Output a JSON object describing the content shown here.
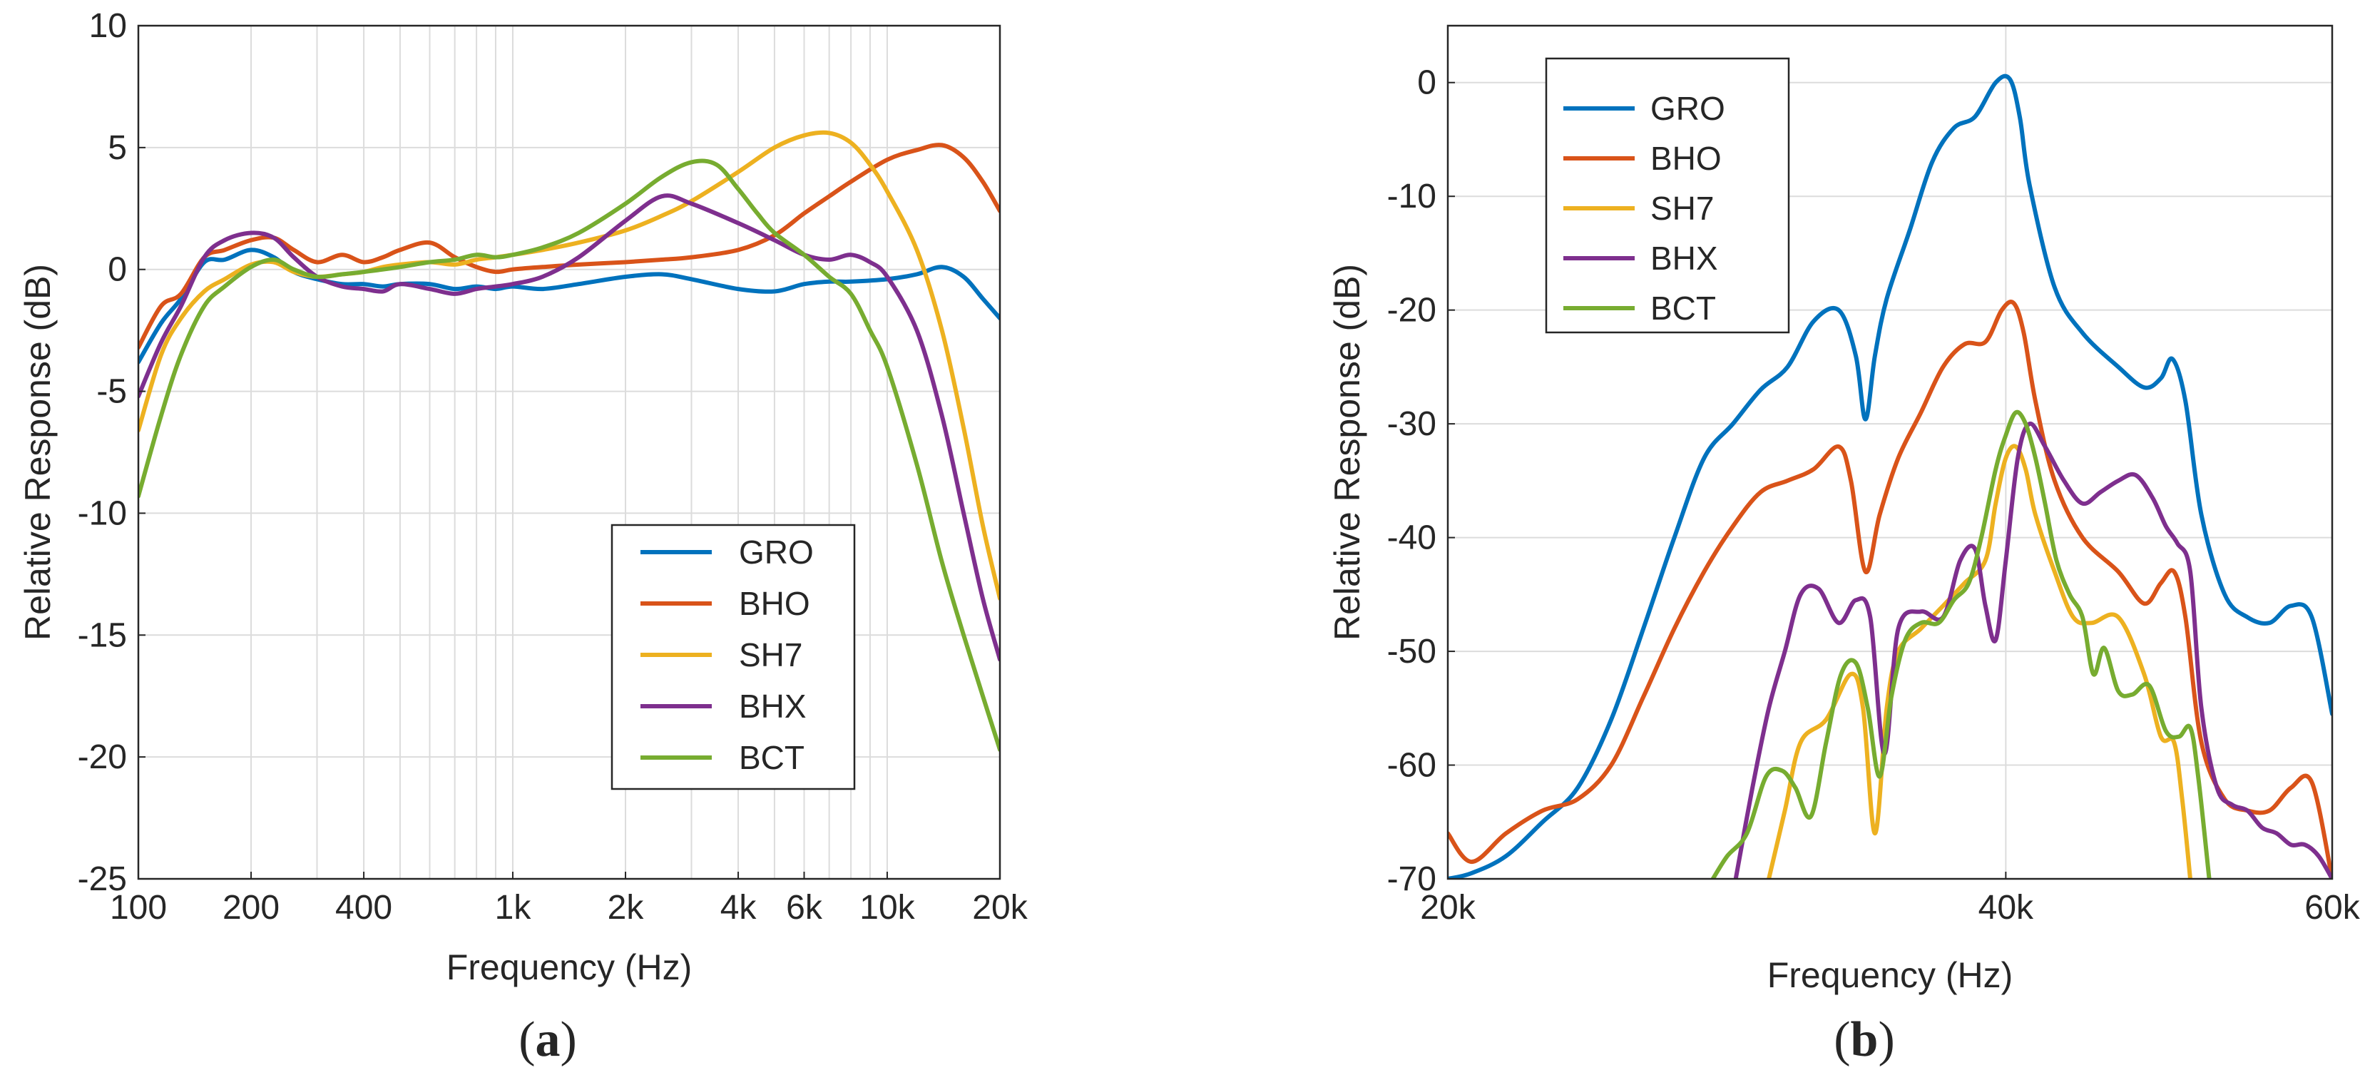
{
  "chart_data": [
    {
      "type": "line",
      "panel_label": "a",
      "xscale": "log",
      "xlim": [
        100,
        20000
      ],
      "ylim": [
        -25,
        10
      ],
      "xlabel": "Frequency (Hz)",
      "ylabel": "Relative Response (dB)",
      "grid": true,
      "legend_position": "lower-right",
      "xticks": [
        100,
        200,
        400,
        1000,
        2000,
        4000,
        6000,
        10000,
        20000
      ],
      "xtick_labels": [
        "100",
        "200",
        "400",
        "1k",
        "2k",
        "4k",
        "6k",
        "10k",
        "20k"
      ],
      "yticks": [
        10,
        5,
        0,
        -5,
        -10,
        -15,
        -20,
        -25
      ],
      "ytick_labels": [
        "10",
        "5",
        "0",
        "-5",
        "-10",
        "-15",
        "-20",
        "-25"
      ],
      "series": [
        {
          "name": "GRO",
          "color": "#0072BD",
          "x": [
            100,
            115,
            130,
            150,
            170,
            200,
            230,
            260,
            300,
            350,
            400,
            450,
            500,
            600,
            700,
            800,
            900,
            1000,
            1200,
            1500,
            2000,
            2500,
            3000,
            4000,
            5000,
            6000,
            7000,
            8000,
            10000,
            12000,
            14000,
            16000,
            18000,
            20000
          ],
          "y": [
            -3.8,
            -2.2,
            -1.2,
            0.3,
            0.4,
            0.8,
            0.5,
            -0.1,
            -0.4,
            -0.6,
            -0.6,
            -0.7,
            -0.6,
            -0.6,
            -0.8,
            -0.7,
            -0.8,
            -0.7,
            -0.8,
            -0.6,
            -0.3,
            -0.2,
            -0.4,
            -0.8,
            -0.9,
            -0.6,
            -0.5,
            -0.5,
            -0.4,
            -0.2,
            0.1,
            -0.3,
            -1.2,
            -2.0
          ]
        },
        {
          "name": "BHO",
          "color": "#D95319",
          "x": [
            100,
            115,
            130,
            150,
            170,
            200,
            230,
            260,
            300,
            350,
            400,
            450,
            500,
            600,
            700,
            800,
            900,
            1000,
            1200,
            1500,
            2000,
            2500,
            3000,
            4000,
            5000,
            6000,
            7000,
            8000,
            10000,
            12000,
            14000,
            16000,
            18000,
            20000
          ],
          "y": [
            -3.2,
            -1.5,
            -1.0,
            0.5,
            0.8,
            1.2,
            1.3,
            0.8,
            0.3,
            0.6,
            0.3,
            0.5,
            0.8,
            1.1,
            0.5,
            0.1,
            -0.1,
            0.0,
            0.1,
            0.2,
            0.3,
            0.4,
            0.5,
            0.8,
            1.4,
            2.3,
            3.0,
            3.6,
            4.5,
            4.9,
            5.1,
            4.6,
            3.6,
            2.4
          ]
        },
        {
          "name": "SH7",
          "color": "#EDB120",
          "x": [
            100,
            115,
            130,
            150,
            170,
            200,
            230,
            260,
            300,
            350,
            400,
            450,
            500,
            600,
            700,
            800,
            900,
            1000,
            1200,
            1500,
            2000,
            2500,
            3000,
            4000,
            5000,
            6000,
            7000,
            8000,
            9000,
            10000,
            12000,
            14000,
            16000,
            18000,
            20000
          ],
          "y": [
            -6.6,
            -3.5,
            -2.0,
            -0.9,
            -0.4,
            0.2,
            0.3,
            -0.1,
            -0.3,
            -0.2,
            -0.1,
            0.1,
            0.2,
            0.3,
            0.2,
            0.4,
            0.5,
            0.6,
            0.8,
            1.1,
            1.6,
            2.2,
            2.8,
            4.0,
            5.0,
            5.5,
            5.6,
            5.2,
            4.3,
            3.2,
            0.8,
            -2.5,
            -6.5,
            -10.5,
            -13.5
          ]
        },
        {
          "name": "BHX",
          "color": "#7E2F8E",
          "x": [
            100,
            115,
            130,
            150,
            170,
            200,
            230,
            260,
            300,
            350,
            400,
            450,
            500,
            600,
            700,
            800,
            900,
            1000,
            1200,
            1500,
            2000,
            2500,
            3000,
            4000,
            5000,
            6000,
            7000,
            8000,
            9000,
            10000,
            12000,
            14000,
            16000,
            18000,
            20000
          ],
          "y": [
            -5.2,
            -3.0,
            -1.5,
            0.5,
            1.2,
            1.5,
            1.3,
            0.5,
            -0.3,
            -0.7,
            -0.8,
            -0.9,
            -0.6,
            -0.8,
            -1.0,
            -0.8,
            -0.7,
            -0.6,
            -0.3,
            0.5,
            2.0,
            3.0,
            2.7,
            1.9,
            1.2,
            0.6,
            0.4,
            0.6,
            0.3,
            -0.3,
            -2.5,
            -6.0,
            -10.0,
            -13.5,
            -16.0
          ]
        },
        {
          "name": "BCT",
          "color": "#77AC30",
          "x": [
            100,
            115,
            130,
            150,
            170,
            200,
            230,
            260,
            300,
            350,
            400,
            450,
            500,
            600,
            700,
            800,
            900,
            1000,
            1200,
            1500,
            2000,
            2500,
            3000,
            3500,
            4000,
            4500,
            5000,
            6000,
            7000,
            8000,
            9000,
            10000,
            12000,
            14000,
            16000,
            18000,
            20000
          ],
          "y": [
            -9.3,
            -6.0,
            -3.5,
            -1.5,
            -0.7,
            0.1,
            0.4,
            0.0,
            -0.3,
            -0.2,
            -0.1,
            0.0,
            0.1,
            0.3,
            0.4,
            0.6,
            0.5,
            0.6,
            0.9,
            1.5,
            2.7,
            3.8,
            4.4,
            4.3,
            3.3,
            2.3,
            1.5,
            0.6,
            -0.3,
            -1.0,
            -2.5,
            -4.0,
            -8.0,
            -12.0,
            -15.0,
            -17.5,
            -19.7
          ]
        }
      ]
    },
    {
      "type": "line",
      "panel_label": "b",
      "xscale": "log",
      "xlim": [
        20000,
        60000
      ],
      "ylim": [
        -70,
        5
      ],
      "xlabel": "Frequency (Hz)",
      "ylabel": "Relative Response (dB)",
      "grid": true,
      "legend_position": "top-left",
      "xticks": [
        20000,
        40000,
        60000
      ],
      "xtick_labels": [
        "20k",
        "40k",
        "60k"
      ],
      "yticks": [
        0,
        -10,
        -20,
        -30,
        -40,
        -50,
        -60,
        -70
      ],
      "ytick_labels": [
        "0",
        "-10",
        "-20",
        "-30",
        "-40",
        "-50",
        "-60",
        "-70"
      ],
      "series": [
        {
          "name": "GRO",
          "color": "#0072BD",
          "x": [
            20000,
            20600,
            21500,
            22500,
            23500,
            24500,
            25500,
            26500,
            27500,
            28500,
            29500,
            30500,
            31500,
            32500,
            33200,
            33600,
            34000,
            34500,
            35500,
            36500,
            37500,
            38500,
            39500,
            40200,
            40700,
            41200,
            42500,
            44000,
            46000,
            47500,
            48500,
            49200,
            50000,
            51000,
            52500,
            54000,
            55500,
            57000,
            58500,
            60000
          ],
          "y": [
            -70,
            -69.5,
            -68,
            -65,
            -62,
            -56,
            -48,
            -40,
            -33,
            -30,
            -27,
            -25,
            -21,
            -20,
            -24,
            -29.6,
            -24,
            -19,
            -13,
            -7,
            -4,
            -3,
            0,
            0.3,
            -3,
            -9,
            -18,
            -22,
            -25,
            -26.8,
            -26,
            -24.3,
            -28,
            -38,
            -45,
            -47,
            -47.5,
            -46,
            -47,
            -55.5
          ]
        },
        {
          "name": "BHO",
          "color": "#D95319",
          "x": [
            20000,
            20600,
            21500,
            22500,
            23500,
            24500,
            25500,
            26500,
            27500,
            28500,
            29500,
            30500,
            31500,
            32500,
            33000,
            33600,
            34200,
            35000,
            36000,
            37000,
            38000,
            39000,
            39800,
            40400,
            40900,
            41500,
            42500,
            44000,
            46000,
            47500,
            48500,
            49300,
            50000,
            51000,
            52500,
            54000,
            55500,
            57000,
            58500,
            60000
          ],
          "y": [
            -66,
            -68.5,
            -66,
            -64,
            -63,
            -60,
            -54,
            -48,
            -43,
            -39,
            -36,
            -35,
            -34,
            -32,
            -35,
            -43,
            -38,
            -33,
            -29,
            -25,
            -23,
            -22.8,
            -20,
            -19.4,
            -22,
            -28,
            -35,
            -40,
            -43,
            -45.8,
            -44,
            -43,
            -47,
            -58,
            -63,
            -64,
            -64,
            -62,
            -61.5,
            -70
          ]
        },
        {
          "name": "SH7",
          "color": "#EDB120",
          "x": [
            29800,
            30400,
            31000,
            32000,
            33000,
            33500,
            34000,
            34500,
            35000,
            36000,
            37000,
            38000,
            39000,
            39500,
            40000,
            40500,
            41000,
            41500,
            42500,
            43500,
            44500,
            46000,
            47500,
            48500,
            49300,
            49800,
            50300
          ],
          "y": [
            -70,
            -64,
            -58,
            -56,
            -52,
            -55,
            -66,
            -55,
            -50,
            -48,
            -46,
            -44,
            -42,
            -37,
            -33,
            -32,
            -34,
            -38,
            -43,
            -47,
            -47.5,
            -47,
            -52,
            -57.5,
            -58,
            -63,
            -70
          ]
        },
        {
          "name": "BHX",
          "color": "#7E2F8E",
          "x": [
            28600,
            29200,
            29800,
            30400,
            31000,
            31700,
            32500,
            33200,
            33800,
            34400,
            35000,
            36000,
            37000,
            37800,
            38500,
            39000,
            39500,
            40000,
            40600,
            41200,
            42000,
            43000,
            44000,
            45000,
            46000,
            47000,
            48000,
            48800,
            49500,
            50300,
            51000,
            52000,
            53000,
            54000,
            55000,
            56000,
            57000,
            58000,
            59000,
            60000
          ],
          "y": [
            -70,
            -62,
            -55,
            -50,
            -45,
            -44.5,
            -47.5,
            -45.5,
            -47,
            -59,
            -48,
            -46.5,
            -47,
            -42,
            -41,
            -46,
            -49,
            -42,
            -33,
            -30,
            -32,
            -35,
            -37,
            -36,
            -35,
            -34.5,
            -36.5,
            -39,
            -40.5,
            -43,
            -55,
            -62,
            -63.5,
            -64,
            -65.5,
            -66,
            -67,
            -67,
            -68,
            -70
          ]
        },
        {
          "name": "BCT",
          "color": "#77AC30",
          "x": [
            27800,
            28300,
            29000,
            29700,
            30300,
            30800,
            31400,
            32000,
            32600,
            33200,
            33700,
            34200,
            34700,
            35300,
            36000,
            36800,
            37500,
            38200,
            38800,
            39500,
            40000,
            40500,
            41000,
            41500,
            42000,
            42600,
            43300,
            44000,
            44600,
            45200,
            46000,
            46800,
            47800,
            48800,
            49600,
            50300,
            50800,
            51500
          ],
          "y": [
            -70,
            -68,
            -66,
            -61,
            -60.5,
            -62,
            -64.5,
            -58,
            -52,
            -51,
            -55,
            -61,
            -54,
            -49,
            -47.5,
            -47.5,
            -45.5,
            -44,
            -40,
            -34,
            -31,
            -29,
            -30,
            -33,
            -37,
            -42,
            -45,
            -47,
            -52,
            -49.7,
            -53.5,
            -53.8,
            -53,
            -57,
            -57.5,
            -56.7,
            -61,
            -70
          ]
        }
      ]
    }
  ]
}
